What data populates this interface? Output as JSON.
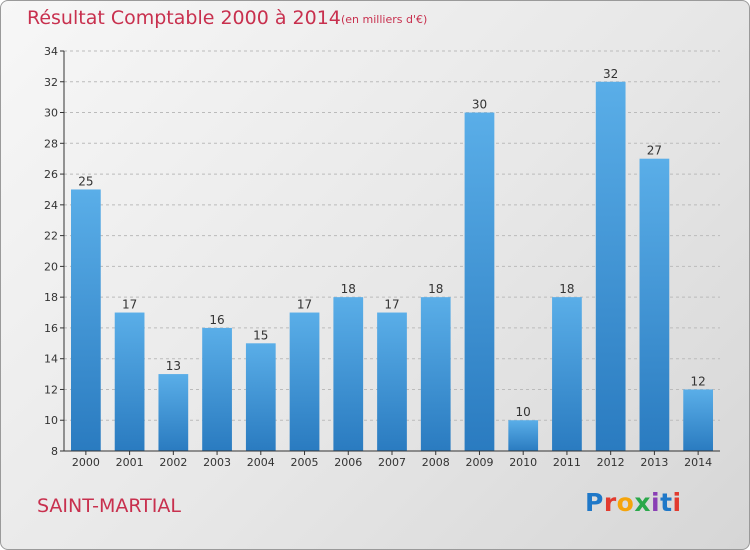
{
  "header": {
    "title": "Résultat Comptable 2000 à 2014",
    "subtitle": "(en milliers d'€)"
  },
  "footer": {
    "commune": "SAINT-MARTIAL",
    "logo_text": "Proxiti",
    "logo_colors": [
      "#1f78c8",
      "#e23a2e",
      "#f5a40a",
      "#2aa84a",
      "#8a3fb5",
      "#1f78c8",
      "#e23a2e"
    ]
  },
  "colors": {
    "bar_top": "#5aaee8",
    "bar_bottom": "#2a7bc0",
    "axis": "#333333",
    "grid": "#bbbbbb",
    "text": "#333333",
    "accent": "#c8304e"
  },
  "chart_data": {
    "type": "bar",
    "categories": [
      "2000",
      "2001",
      "2002",
      "2003",
      "2004",
      "2005",
      "2006",
      "2007",
      "2008",
      "2009",
      "2010",
      "2011",
      "2012",
      "2013",
      "2014"
    ],
    "values": [
      25,
      17,
      13,
      16,
      15,
      17,
      18,
      17,
      18,
      30,
      10,
      18,
      32,
      27,
      12
    ],
    "ylim": [
      8,
      34
    ],
    "yticks": [
      8,
      10,
      12,
      14,
      16,
      18,
      20,
      22,
      24,
      26,
      28,
      30,
      32,
      34
    ],
    "grid": "horizontal",
    "data_labels": true
  }
}
